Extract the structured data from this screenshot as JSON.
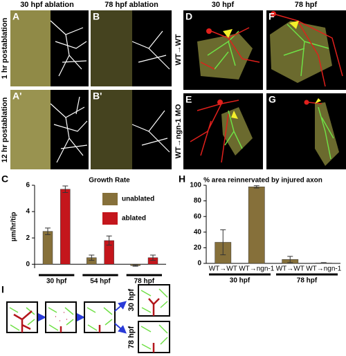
{
  "figure": {
    "panel_letters": [
      "A",
      "B",
      "A'",
      "B'",
      "C",
      "D",
      "E",
      "F",
      "G",
      "H",
      "I"
    ],
    "col_headers_left": [
      "30 hpf ablation",
      "78 hpf ablation"
    ],
    "row_headers_left": [
      "1 hr postablation",
      "12 hr postablation"
    ],
    "col_headers_right": [
      "30 hpf",
      "78 hpf"
    ],
    "row_headers_right": [
      "WT→WT",
      "WT→ngn-1 MO"
    ],
    "schematic_labels": [
      "30 hpf",
      "78 hpf"
    ]
  },
  "chart_data": [
    {
      "type": "bar",
      "title": "Growth Rate",
      "y_label": "μm/hr/tip",
      "categories": [
        "30 hpf",
        "54 hpf",
        "78 hpf"
      ],
      "series": [
        {
          "name": "unablated",
          "color": "#86703a",
          "values": [
            2.5,
            0.5,
            -0.1
          ],
          "errors": [
            0.25,
            0.2,
            0.05
          ]
        },
        {
          "name": "ablated",
          "color": "#c4161c",
          "values": [
            5.7,
            1.8,
            0.5
          ],
          "errors": [
            0.25,
            0.35,
            0.2
          ]
        }
      ],
      "ylim": [
        -0.3,
        6
      ],
      "yticks": [
        0,
        2,
        4,
        6
      ],
      "legend": "upper right"
    },
    {
      "type": "bar",
      "title": "% area reinnervated by injured axon",
      "categories": [
        "WT→WT",
        "WT→ngn-1",
        "WT→WT",
        "WT→ngn-1"
      ],
      "groups": [
        "30 hpf",
        "78 hpf"
      ],
      "series": [
        {
          "color": "#86703a",
          "values": [
            27,
            98,
            5,
            0.5
          ],
          "errors": [
            16,
            1.5,
            4,
            0.5
          ]
        }
      ],
      "ylim": [
        0,
        100
      ],
      "yticks": [
        0,
        20,
        40,
        60,
        80,
        100
      ]
    }
  ]
}
